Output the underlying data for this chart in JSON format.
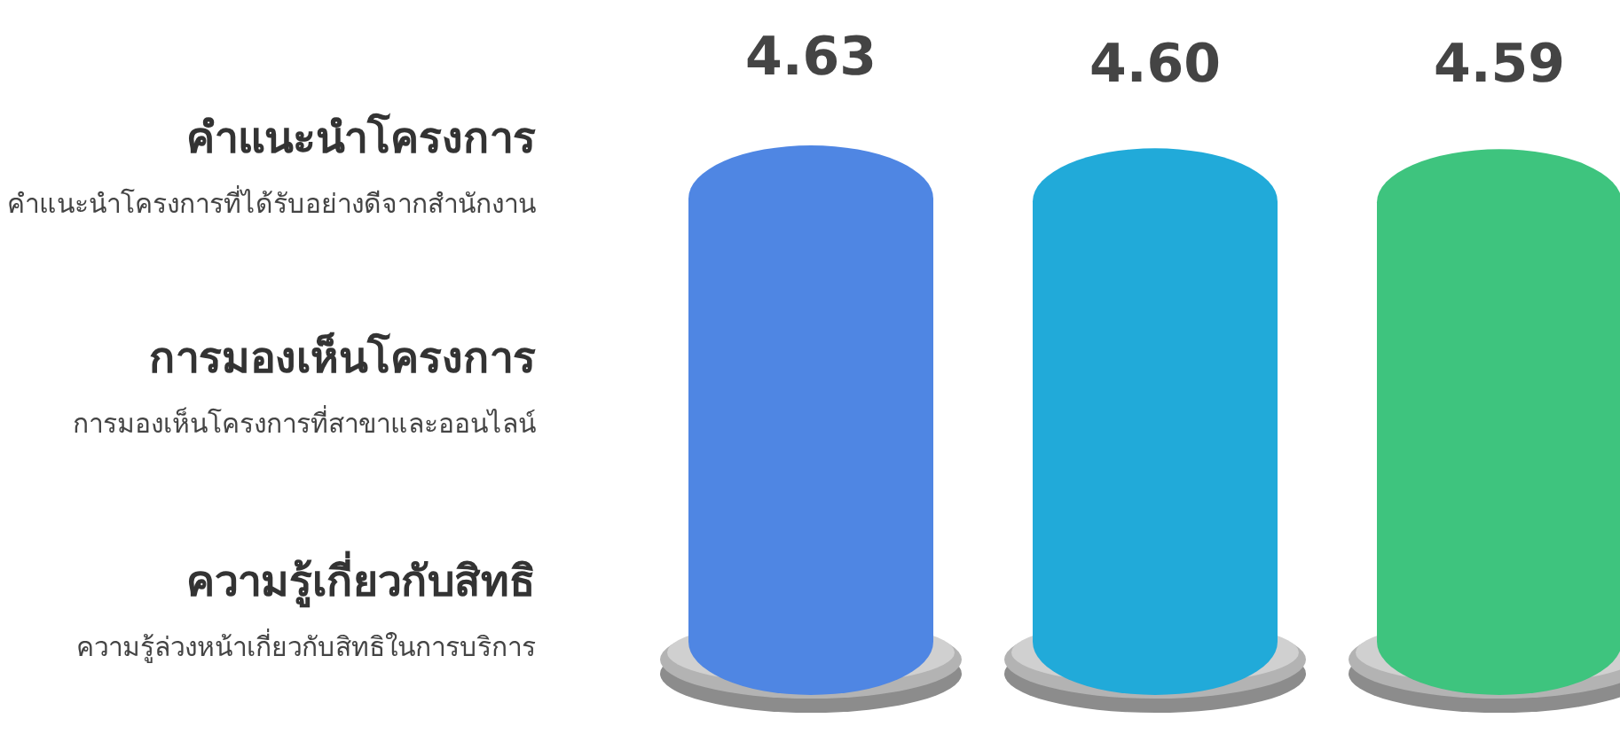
{
  "chart_data": {
    "type": "bar",
    "categories": [
      null,
      null,
      null
    ],
    "values": [
      4.63,
      4.6,
      4.59
    ],
    "value_labels": [
      "4.63",
      "4.60",
      "4.59"
    ],
    "colors": [
      "#4f86e3",
      "#21aad9",
      "#3ec47e"
    ],
    "annotations": [
      "คำแนะนำโครงการ",
      "คำแนะนำโครงการที่ได้รับอย่างดีจากสำนักงาน",
      "การมองเห็นโครงการ",
      "การมองเห็นโครงการที่สาขาและออนไลน์",
      "ความรู้เกี่ยวกับสิทธิ",
      "ความรู้ล่วงหน้าเกี่ยวกับสิทธิในการบริการ"
    ]
  }
}
